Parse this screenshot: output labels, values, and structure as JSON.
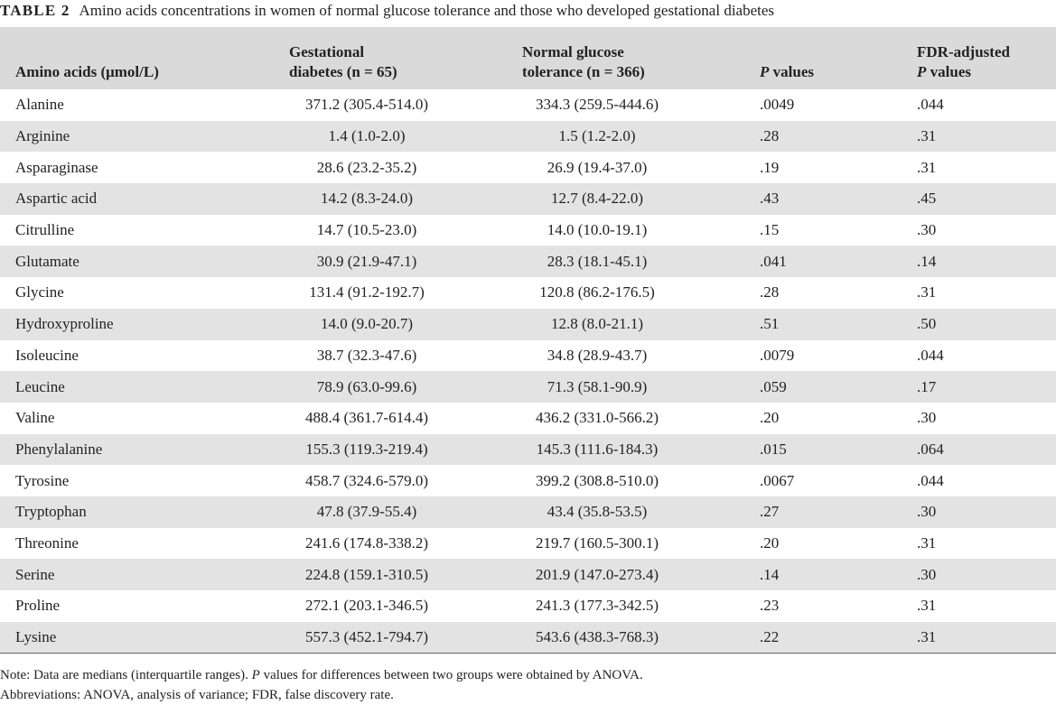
{
  "caption": {
    "label": "TABLE 2",
    "text": "Amino acids concentrations in women of normal glucose tolerance and those who developed gestational diabetes"
  },
  "header": {
    "col1": "Amino acids (μmol/L)",
    "col2_line1": "Gestational",
    "col2_line2": "diabetes (n = 65)",
    "col3_line1": "Normal glucose",
    "col3_line2": "tolerance (n = 366)",
    "col4_italic": "P",
    "col4_rest": " values",
    "col5_line1": "FDR-adjusted",
    "col5_italic": "P",
    "col5_rest": " values"
  },
  "rows": [
    {
      "name": "Alanine",
      "gd": "371.2 (305.4-514.0)",
      "ngt": "334.3 (259.5-444.6)",
      "p": ".0049",
      "fdr": ".044"
    },
    {
      "name": "Arginine",
      "gd": "1.4 (1.0-2.0)",
      "ngt": "1.5 (1.2-2.0)",
      "p": ".28",
      "fdr": ".31"
    },
    {
      "name": "Asparaginase",
      "gd": "28.6 (23.2-35.2)",
      "ngt": "26.9 (19.4-37.0)",
      "p": ".19",
      "fdr": ".31"
    },
    {
      "name": "Aspartic acid",
      "gd": "14.2 (8.3-24.0)",
      "ngt": "12.7 (8.4-22.0)",
      "p": ".43",
      "fdr": ".45"
    },
    {
      "name": "Citrulline",
      "gd": "14.7 (10.5-23.0)",
      "ngt": "14.0 (10.0-19.1)",
      "p": ".15",
      "fdr": ".30"
    },
    {
      "name": "Glutamate",
      "gd": "30.9 (21.9-47.1)",
      "ngt": "28.3 (18.1-45.1)",
      "p": ".041",
      "fdr": ".14"
    },
    {
      "name": "Glycine",
      "gd": "131.4 (91.2-192.7)",
      "ngt": "120.8 (86.2-176.5)",
      "p": ".28",
      "fdr": ".31"
    },
    {
      "name": "Hydroxyproline",
      "gd": "14.0 (9.0-20.7)",
      "ngt": "12.8 (8.0-21.1)",
      "p": ".51",
      "fdr": ".50"
    },
    {
      "name": "Isoleucine",
      "gd": "38.7 (32.3-47.6)",
      "ngt": "34.8 (28.9-43.7)",
      "p": ".0079",
      "fdr": ".044"
    },
    {
      "name": "Leucine",
      "gd": "78.9 (63.0-99.6)",
      "ngt": "71.3 (58.1-90.9)",
      "p": ".059",
      "fdr": ".17"
    },
    {
      "name": "Valine",
      "gd": "488.4 (361.7-614.4)",
      "ngt": "436.2 (331.0-566.2)",
      "p": ".20",
      "fdr": ".30"
    },
    {
      "name": "Phenylalanine",
      "gd": "155.3 (119.3-219.4)",
      "ngt": "145.3 (111.6-184.3)",
      "p": ".015",
      "fdr": ".064"
    },
    {
      "name": "Tyrosine",
      "gd": "458.7 (324.6-579.0)",
      "ngt": "399.2 (308.8-510.0)",
      "p": ".0067",
      "fdr": ".044"
    },
    {
      "name": "Tryptophan",
      "gd": "47.8 (37.9-55.4)",
      "ngt": "43.4 (35.8-53.5)",
      "p": ".27",
      "fdr": ".30"
    },
    {
      "name": "Threonine",
      "gd": "241.6 (174.8-338.2)",
      "ngt": "219.7 (160.5-300.1)",
      "p": ".20",
      "fdr": ".31"
    },
    {
      "name": "Serine",
      "gd": "224.8 (159.1-310.5)",
      "ngt": "201.9 (147.0-273.4)",
      "p": ".14",
      "fdr": ".30"
    },
    {
      "name": "Proline",
      "gd": "272.1 (203.1-346.5)",
      "ngt": "241.3 (177.3-342.5)",
      "p": ".23",
      "fdr": ".31"
    },
    {
      "name": "Lysine",
      "gd": "557.3 (452.1-794.7)",
      "ngt": "543.6 (438.3-768.3)",
      "p": ".22",
      "fdr": ".31"
    }
  ],
  "notes": {
    "line1_prefix": "Note: Data are medians (interquartile ranges). ",
    "line1_italic": "P",
    "line1_suffix": " values for differences between two groups were obtained by ANOVA.",
    "line2": "Abbreviations: ANOVA, analysis of variance; FDR, false discovery rate."
  }
}
